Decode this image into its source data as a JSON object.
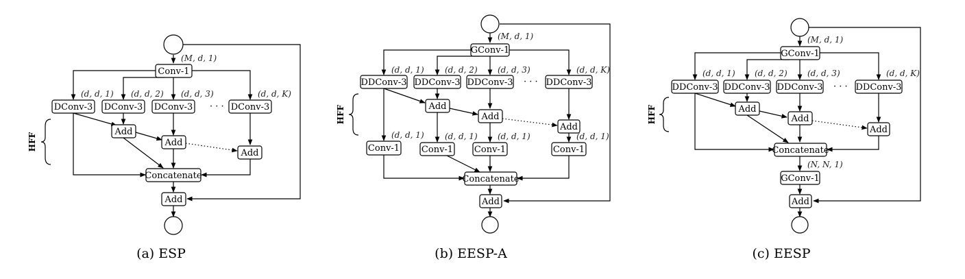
{
  "diagrams": [
    {
      "id": "esp",
      "caption": "(a) ESP",
      "hff": "HFF",
      "nodes": {
        "conv1": "Conv-1",
        "dconv": [
          "DConv-3",
          "DConv-3",
          "DConv-3",
          "DConv-3"
        ],
        "add1": "Add",
        "add2": "Add",
        "add3": "Add",
        "concat": "Concatenate",
        "add_out": "Add"
      },
      "dims": {
        "in": "(M, d, 1)",
        "branches": [
          "(d, d, 1)",
          "(d, d, 2)",
          "(d, d, 3)",
          "(d, d, K)"
        ]
      },
      "ellipsis": "· · ·"
    },
    {
      "id": "eesp-a",
      "caption": "(b) EESP-A",
      "hff": "HFF",
      "nodes": {
        "gconv1": "GConv-1",
        "ddconv": [
          "DDConv-3",
          "DDConv-3",
          "DDConv-3",
          "DDConv-3"
        ],
        "add1": "Add",
        "add2": "Add",
        "add3": "Add",
        "conv1s": [
          "Conv-1",
          "Conv-1",
          "Conv-1",
          "Conv-1"
        ],
        "concat": "Concatenate",
        "add_out": "Add"
      },
      "dims": {
        "in": "(M, d, 1)",
        "branches": [
          "(d, d, 1)",
          "(d, d, 2)",
          "(d, d, 3)",
          "(d, d, K)"
        ],
        "conv1s": [
          "(d, d, 1)",
          "(d, d, 1)",
          "(d, d, 1)",
          "(d, d, 1)"
        ]
      },
      "ellipsis": "· · ·"
    },
    {
      "id": "eesp",
      "caption": "(c) EESP",
      "hff": "HFF",
      "nodes": {
        "gconv1": "GConv-1",
        "ddconv": [
          "DDConv-3",
          "DDConv-3",
          "DDConv-3",
          "DDConv-3"
        ],
        "add1": "Add",
        "add2": "Add",
        "add3": "Add",
        "concat": "Concatenate",
        "gconv_out": "GConv-1",
        "add_out": "Add"
      },
      "dims": {
        "in": "(M, d, 1)",
        "branches": [
          "(d, d, 1)",
          "(d, d, 2)",
          "(d, d, 3)",
          "(d, d, K)"
        ],
        "out": "(N, N, 1)"
      },
      "ellipsis": "· · ·"
    }
  ]
}
